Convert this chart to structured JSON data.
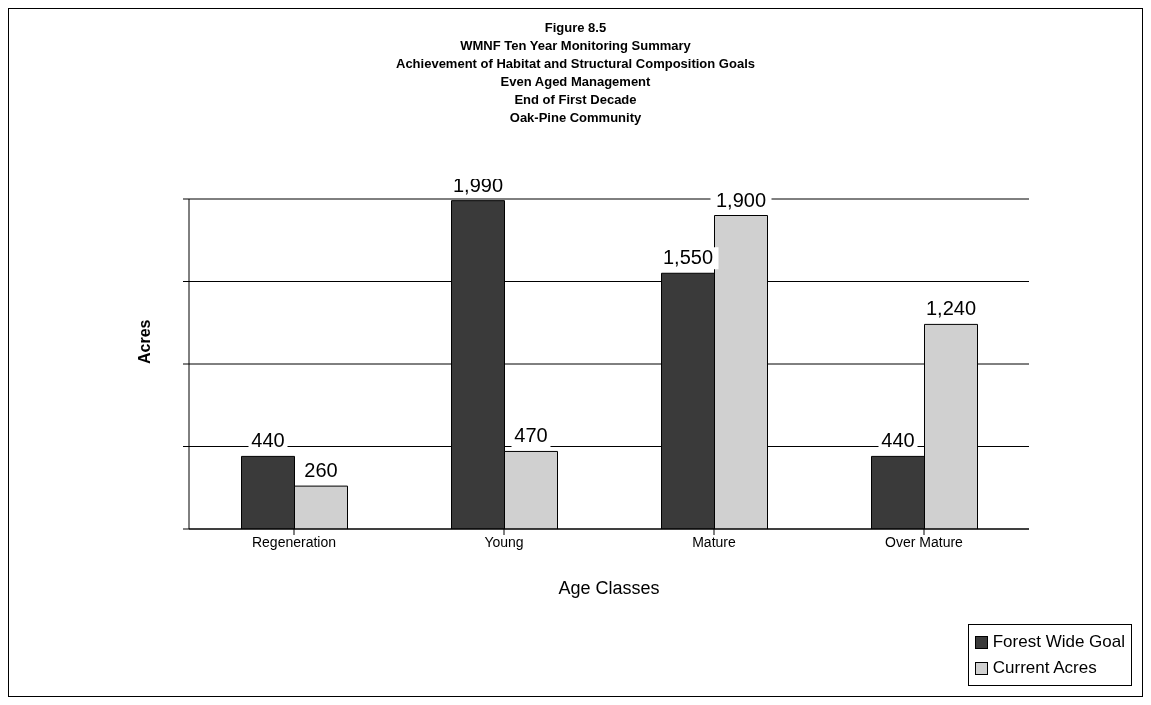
{
  "chart_data": {
    "type": "bar",
    "title": "Figure 8.5\nWMNF Ten Year Monitoring Summary\nAchievement of Habitat and Structural Composition Goals\nEven Aged Management\nEnd of First Decade\nOak-Pine Community",
    "xlabel": "Age Classes",
    "ylabel": "Acres",
    "categories": [
      "Regeneration",
      "Young",
      "Mature",
      "Over Mature"
    ],
    "series": [
      {
        "name": "Forest Wide Goal",
        "color": "#3a3a3a",
        "values": [
          440,
          1990,
          1550,
          440
        ],
        "value_labels": [
          "440",
          "1,990",
          "1,550",
          "440"
        ]
      },
      {
        "name": "Current Acres",
        "color": "#d0d0d0",
        "values": [
          260,
          470,
          1900,
          1240
        ],
        "value_labels": [
          "260",
          "470",
          "1,900",
          "1,240"
        ]
      }
    ],
    "ylim": [
      0,
      2000
    ],
    "yticks": [
      {
        "value": 0,
        "label": null
      },
      {
        "value": 500,
        "label": null
      },
      {
        "value": 1000,
        "label": null
      },
      {
        "value": 1500,
        "label": null
      },
      {
        "value": 2000,
        "label": null
      }
    ],
    "tick_labels": "x",
    "grid": "y",
    "legend": "bottom right"
  }
}
